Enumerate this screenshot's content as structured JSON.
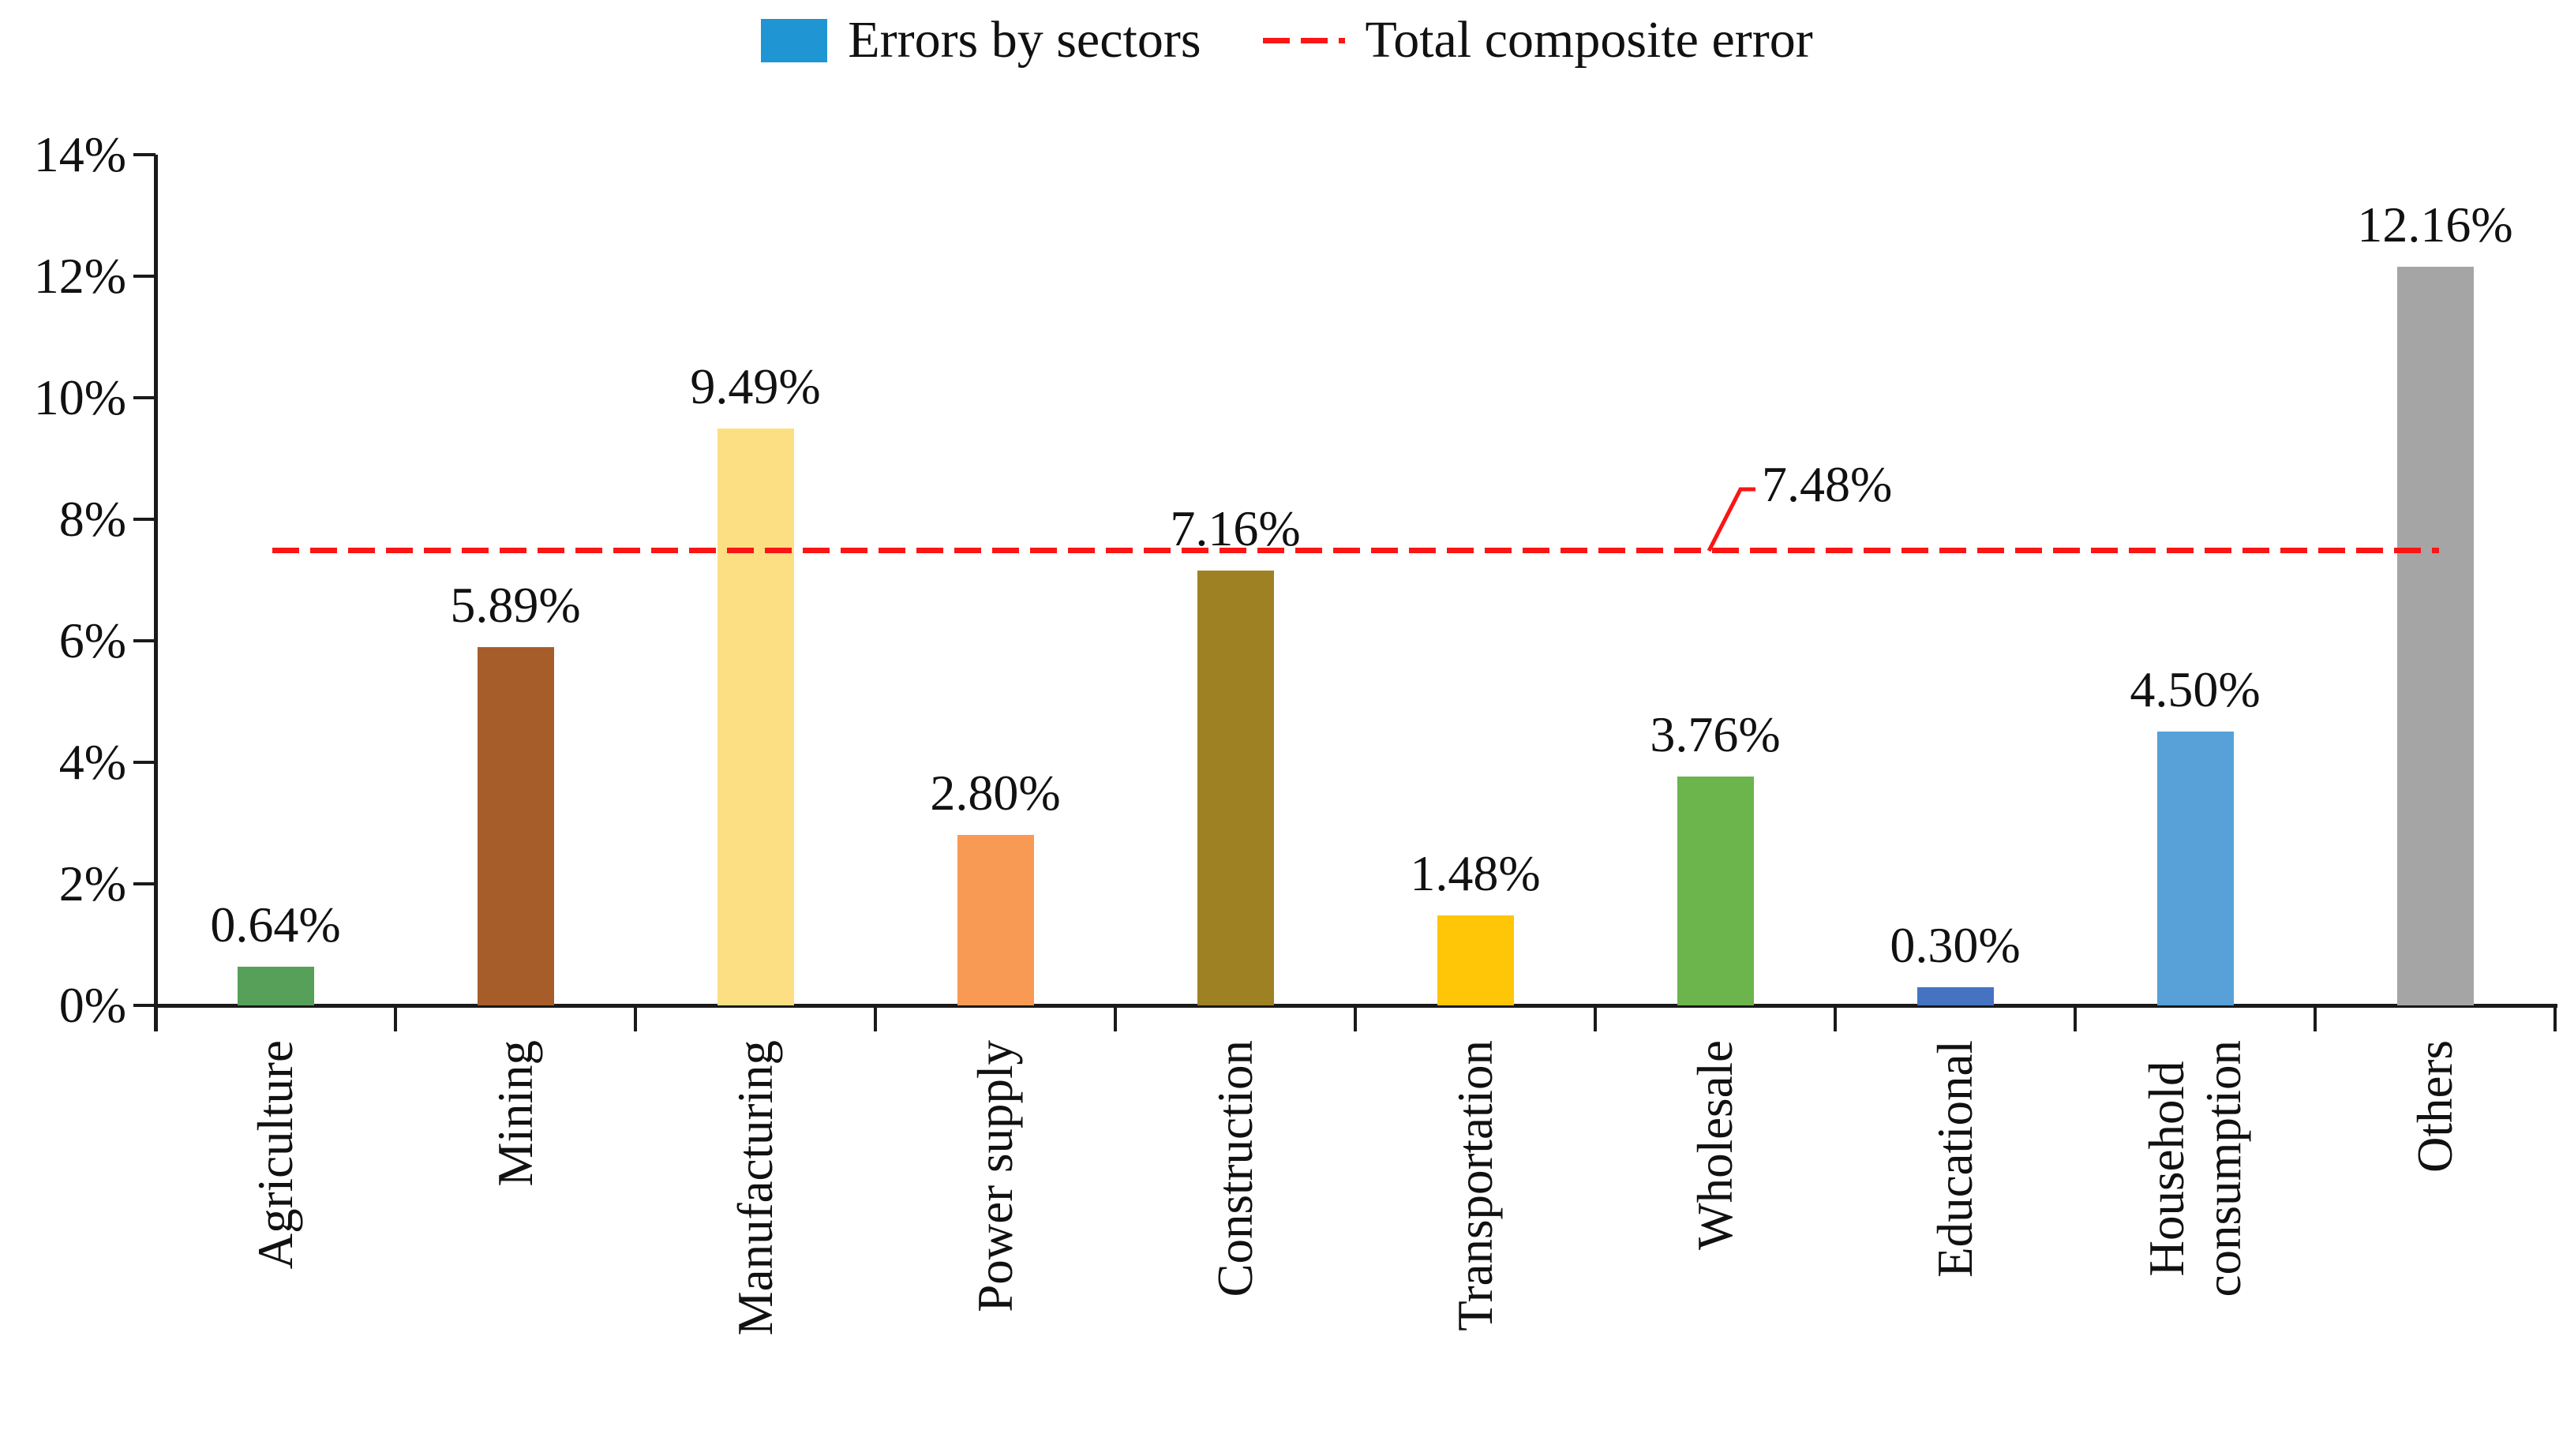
{
  "legend": {
    "series_label": "Errors by sectors",
    "line_label": "Total composite error",
    "series_color": "#2095d3",
    "line_color": "#fb1515"
  },
  "chart_data": {
    "type": "bar",
    "title": "",
    "xlabel": "",
    "ylabel": "",
    "categories": [
      "Agriculture",
      "Mining",
      "Manufacturing",
      "Power supply",
      "Construction",
      "Transportation",
      "Wholesale",
      "Educational",
      "Household\nconsumption",
      "Others"
    ],
    "values": [
      0.64,
      5.89,
      9.49,
      2.8,
      7.16,
      1.48,
      3.76,
      0.3,
      4.5,
      12.16
    ],
    "value_labels": [
      "0.64%",
      "5.89%",
      "9.49%",
      "2.80%",
      "7.16%",
      "1.48%",
      "3.76%",
      "0.30%",
      "4.50%",
      "12.16%"
    ],
    "bar_colors": [
      "#57a059",
      "#a65d2a",
      "#fbdf82",
      "#f89a54",
      "#9e8123",
      "#fec607",
      "#6cb44c",
      "#4573c2",
      "#57a1d8",
      "#a5a5a5"
    ],
    "reference_line": {
      "value": 7.48,
      "label": "7.48%",
      "color": "#fb1515",
      "style": "dashed"
    },
    "ylim": [
      0,
      14
    ],
    "yticks": [
      0,
      2,
      4,
      6,
      8,
      10,
      12,
      14
    ],
    "ytick_labels": [
      "0%",
      "2%",
      "4%",
      "6%",
      "8%",
      "10%",
      "12%",
      "14%"
    ],
    "grid": false,
    "legend_position": "top",
    "axis_color": "#1a1a1a",
    "text_color": "#111111"
  }
}
